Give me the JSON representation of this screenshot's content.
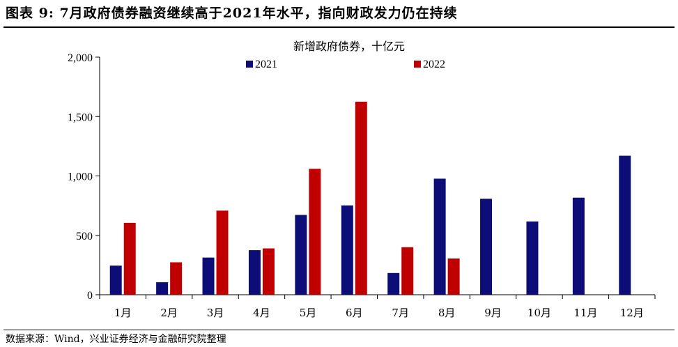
{
  "header": {
    "figure_title": "图表 9: 7月政府债券融资继续高于2021年水平，指向财政发力仍在持续"
  },
  "footer": {
    "source": "数据来源：Wind，兴业证券经济与金融研究院整理"
  },
  "colors": {
    "series_2021": "#0d0d78",
    "series_2022": "#c00000"
  },
  "chart_data": {
    "type": "bar",
    "title": "新增政府债券，十亿元",
    "xlabel": "",
    "ylabel": "",
    "ylim": [
      0,
      2000
    ],
    "yticks": [
      0,
      500,
      1000,
      1500,
      2000
    ],
    "ytick_labels": [
      "0",
      "500",
      "1,000",
      "1,500",
      "2,000"
    ],
    "categories": [
      "1月",
      "2月",
      "3月",
      "4月",
      "5月",
      "6月",
      "7月",
      "8月",
      "9月",
      "10月",
      "11月",
      "12月"
    ],
    "series": [
      {
        "name": "2021",
        "values": [
          245,
          105,
          313,
          375,
          672,
          752,
          183,
          977,
          808,
          617,
          817,
          1170
        ]
      },
      {
        "name": "2022",
        "values": [
          605,
          273,
          708,
          390,
          1060,
          1625,
          400,
          305,
          null,
          null,
          null,
          null
        ]
      }
    ],
    "legend_position": "top-center",
    "grid": false
  }
}
